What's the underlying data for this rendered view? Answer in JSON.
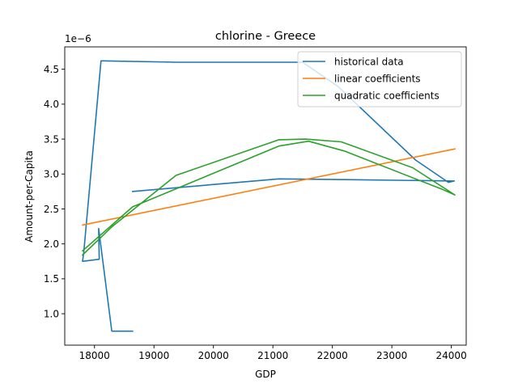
{
  "chart_data": {
    "type": "line",
    "title": "chlorine - Greece",
    "xlabel": "GDP",
    "ylabel": "Amount-per-Capita",
    "y_offset_label": "1e−6",
    "xlim": [
      17500,
      24250
    ],
    "ylim": [
      0.55,
      4.82
    ],
    "xticks": [
      18000,
      19000,
      20000,
      21000,
      22000,
      23000,
      24000
    ],
    "yticks": [
      1.0,
      1.5,
      2.0,
      2.5,
      3.0,
      3.5,
      4.0,
      4.5
    ],
    "ytick_labels": [
      "1.0",
      "1.5",
      "2.0",
      "2.5",
      "3.0",
      "3.5",
      "4.0",
      "4.5"
    ],
    "grid": false,
    "legend_position": "top-right",
    "series": [
      {
        "name": "historical data",
        "color": "#1f77b4",
        "points": [
          [
            18640,
            0.75
          ],
          [
            18290,
            0.75
          ],
          [
            18070,
            2.22
          ],
          [
            18080,
            1.78
          ],
          [
            17800,
            1.75
          ],
          [
            17820,
            1.88
          ],
          [
            18110,
            4.62
          ],
          [
            19400,
            4.6
          ],
          [
            21500,
            4.6
          ],
          [
            22100,
            4.25
          ],
          [
            23400,
            3.2
          ],
          [
            23950,
            2.88
          ],
          [
            24050,
            2.9
          ],
          [
            22200,
            2.92
          ],
          [
            21100,
            2.93
          ],
          [
            18640,
            2.75
          ]
        ]
      },
      {
        "name": "linear coefficients",
        "color": "#ff7f0e",
        "points": [
          [
            17800,
            2.27
          ],
          [
            24060,
            3.36
          ]
        ]
      },
      {
        "name": "quadratic coefficients",
        "color": "#2ca02c",
        "points": [
          [
            17800,
            1.84
          ],
          [
            18300,
            2.25
          ],
          [
            19370,
            2.98
          ],
          [
            21100,
            3.49
          ],
          [
            21550,
            3.5
          ],
          [
            22150,
            3.46
          ],
          [
            23350,
            3.09
          ],
          [
            24060,
            2.7
          ],
          [
            23850,
            2.78
          ],
          [
            22200,
            3.33
          ],
          [
            21600,
            3.47
          ],
          [
            21100,
            3.4
          ],
          [
            18640,
            2.53
          ],
          [
            17800,
            1.9
          ]
        ]
      }
    ]
  }
}
